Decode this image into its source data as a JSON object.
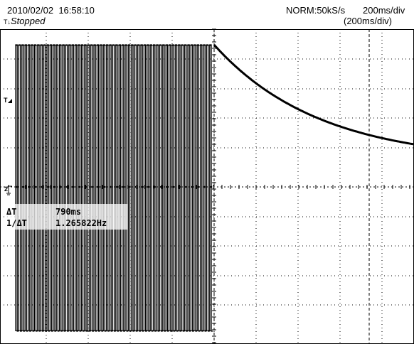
{
  "header": {
    "date": "2010/02/02",
    "time": "16:58:10",
    "status": "Stopped",
    "sample_mode": "NORM:50kS/s",
    "timebase": "200ms/div",
    "timebase_sub": "(200ms/div)"
  },
  "markers": {
    "trigger_level": "T",
    "channel": "2"
  },
  "measurements": {
    "dt_label": "ΔT",
    "dt_value": "790ms",
    "freq_label": "1/ΔT",
    "freq_value": "1.265822Hz"
  },
  "colors": {
    "trace": "#000000",
    "grid": "#000000",
    "background": "#ffffff"
  },
  "icons": [
    "trigger-marker-icon",
    "trigger-level-arrow-icon",
    "ground-marker-icon"
  ]
}
